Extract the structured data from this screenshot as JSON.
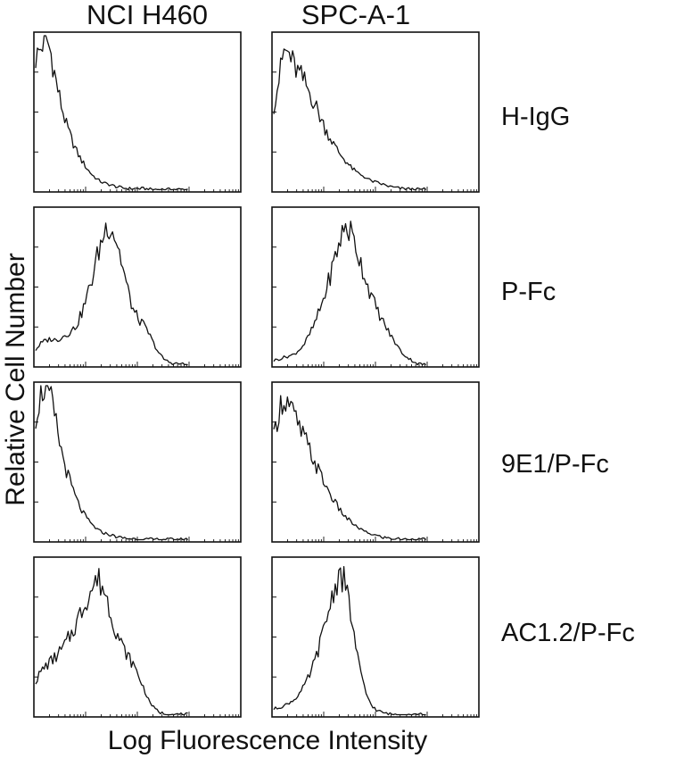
{
  "figure": {
    "column_titles": [
      "NCI H460",
      "SPC-A-1"
    ],
    "row_labels": [
      "H-IgG",
      "P-Fc",
      "9E1/P-Fc",
      "AC1.2/P-Fc"
    ],
    "ylabel": "Relative  Cell  Number",
    "xlabel": "Log Fluorescence Intensity"
  },
  "chart_data": {
    "type": "line",
    "grid": false,
    "x_scale": "log",
    "note_axes": "tick marks only, no numeric tick labels",
    "x": [
      1,
      1.26,
      1.58,
      2,
      2.51,
      3.16,
      3.98,
      5.01,
      6.31,
      7.94,
      10,
      12.6,
      15.8,
      20,
      25.1,
      31.6,
      39.8,
      50.1,
      63.1,
      79.4,
      100,
      126,
      158,
      200,
      251,
      316,
      398,
      501,
      631,
      794,
      1000
    ],
    "xlim": [
      1,
      10000
    ],
    "ylim": [
      0,
      100
    ],
    "panels": [
      {
        "column": "NCI H460",
        "row": "H-IgG",
        "values": [
          85,
          92,
          100,
          88,
          70,
          55,
          42,
          33,
          25,
          19,
          14,
          10,
          7,
          5,
          4,
          3,
          2,
          1.5,
          1,
          1,
          1,
          1,
          0.5,
          0.5,
          0.5,
          0.5,
          0.5,
          0.5,
          0.5,
          0.5,
          0.5
        ]
      },
      {
        "column": "SPC-A-1",
        "row": "H-IgG",
        "values": [
          55,
          72,
          90,
          88,
          80,
          75,
          70,
          63,
          56,
          48,
          40,
          34,
          28,
          23,
          19,
          15,
          12,
          10,
          8,
          6,
          5,
          4,
          3,
          2,
          1.5,
          1,
          1,
          0.5,
          0.5,
          0.5,
          0.5
        ]
      },
      {
        "column": "NCI H460",
        "row": "P-Fc",
        "values": [
          10,
          14,
          16,
          17,
          16,
          18,
          20,
          22,
          26,
          34,
          44,
          56,
          70,
          82,
          92,
          88,
          78,
          63,
          48,
          36,
          30,
          26,
          21,
          14,
          8,
          4,
          2,
          1,
          1,
          0.5,
          0.5
        ]
      },
      {
        "column": "SPC-A-1",
        "row": "P-Fc",
        "values": [
          3,
          4,
          5,
          6,
          7,
          10,
          14,
          20,
          27,
          36,
          46,
          58,
          70,
          82,
          90,
          86,
          77,
          66,
          55,
          45,
          37,
          30,
          24,
          18,
          13,
          8,
          5,
          3,
          1,
          0.5,
          0.5
        ]
      },
      {
        "column": "NCI H460",
        "row": "9E1/P-Fc",
        "values": [
          80,
          95,
          100,
          90,
          75,
          58,
          45,
          35,
          26,
          19,
          14,
          10,
          7,
          5,
          4,
          3,
          2,
          1.5,
          1,
          1,
          0.5,
          0.5,
          0.5,
          0.5,
          0.5,
          0.5,
          0.5,
          0.5,
          0.5,
          0.5,
          0.5
        ]
      },
      {
        "column": "SPC-A-1",
        "row": "9E1/P-Fc",
        "values": [
          65,
          85,
          92,
          88,
          80,
          72,
          66,
          58,
          50,
          43,
          36,
          30,
          24,
          19,
          15,
          12,
          9,
          7,
          5,
          4,
          3,
          2,
          1.5,
          1,
          1,
          0.5,
          0.5,
          0.5,
          0.5,
          0.5,
          0.5
        ]
      },
      {
        "column": "NCI H460",
        "row": "AC1.2/P-Fc",
        "values": [
          22,
          28,
          32,
          35,
          38,
          42,
          47,
          53,
          60,
          68,
          76,
          82,
          88,
          84,
          74,
          62,
          52,
          44,
          38,
          33,
          26,
          18,
          10,
          5,
          2,
          1,
          0.5,
          0.5,
          0.5,
          0.5,
          0.5
        ]
      },
      {
        "column": "SPC-A-1",
        "row": "AC1.2/P-Fc",
        "values": [
          4,
          5,
          6,
          8,
          10,
          14,
          19,
          26,
          35,
          46,
          58,
          72,
          84,
          92,
          84,
          66,
          44,
          26,
          14,
          7,
          3,
          2,
          1,
          0.5,
          0.5,
          0.5,
          0.5,
          0.5,
          0.5,
          0.5,
          0.5
        ]
      }
    ]
  }
}
